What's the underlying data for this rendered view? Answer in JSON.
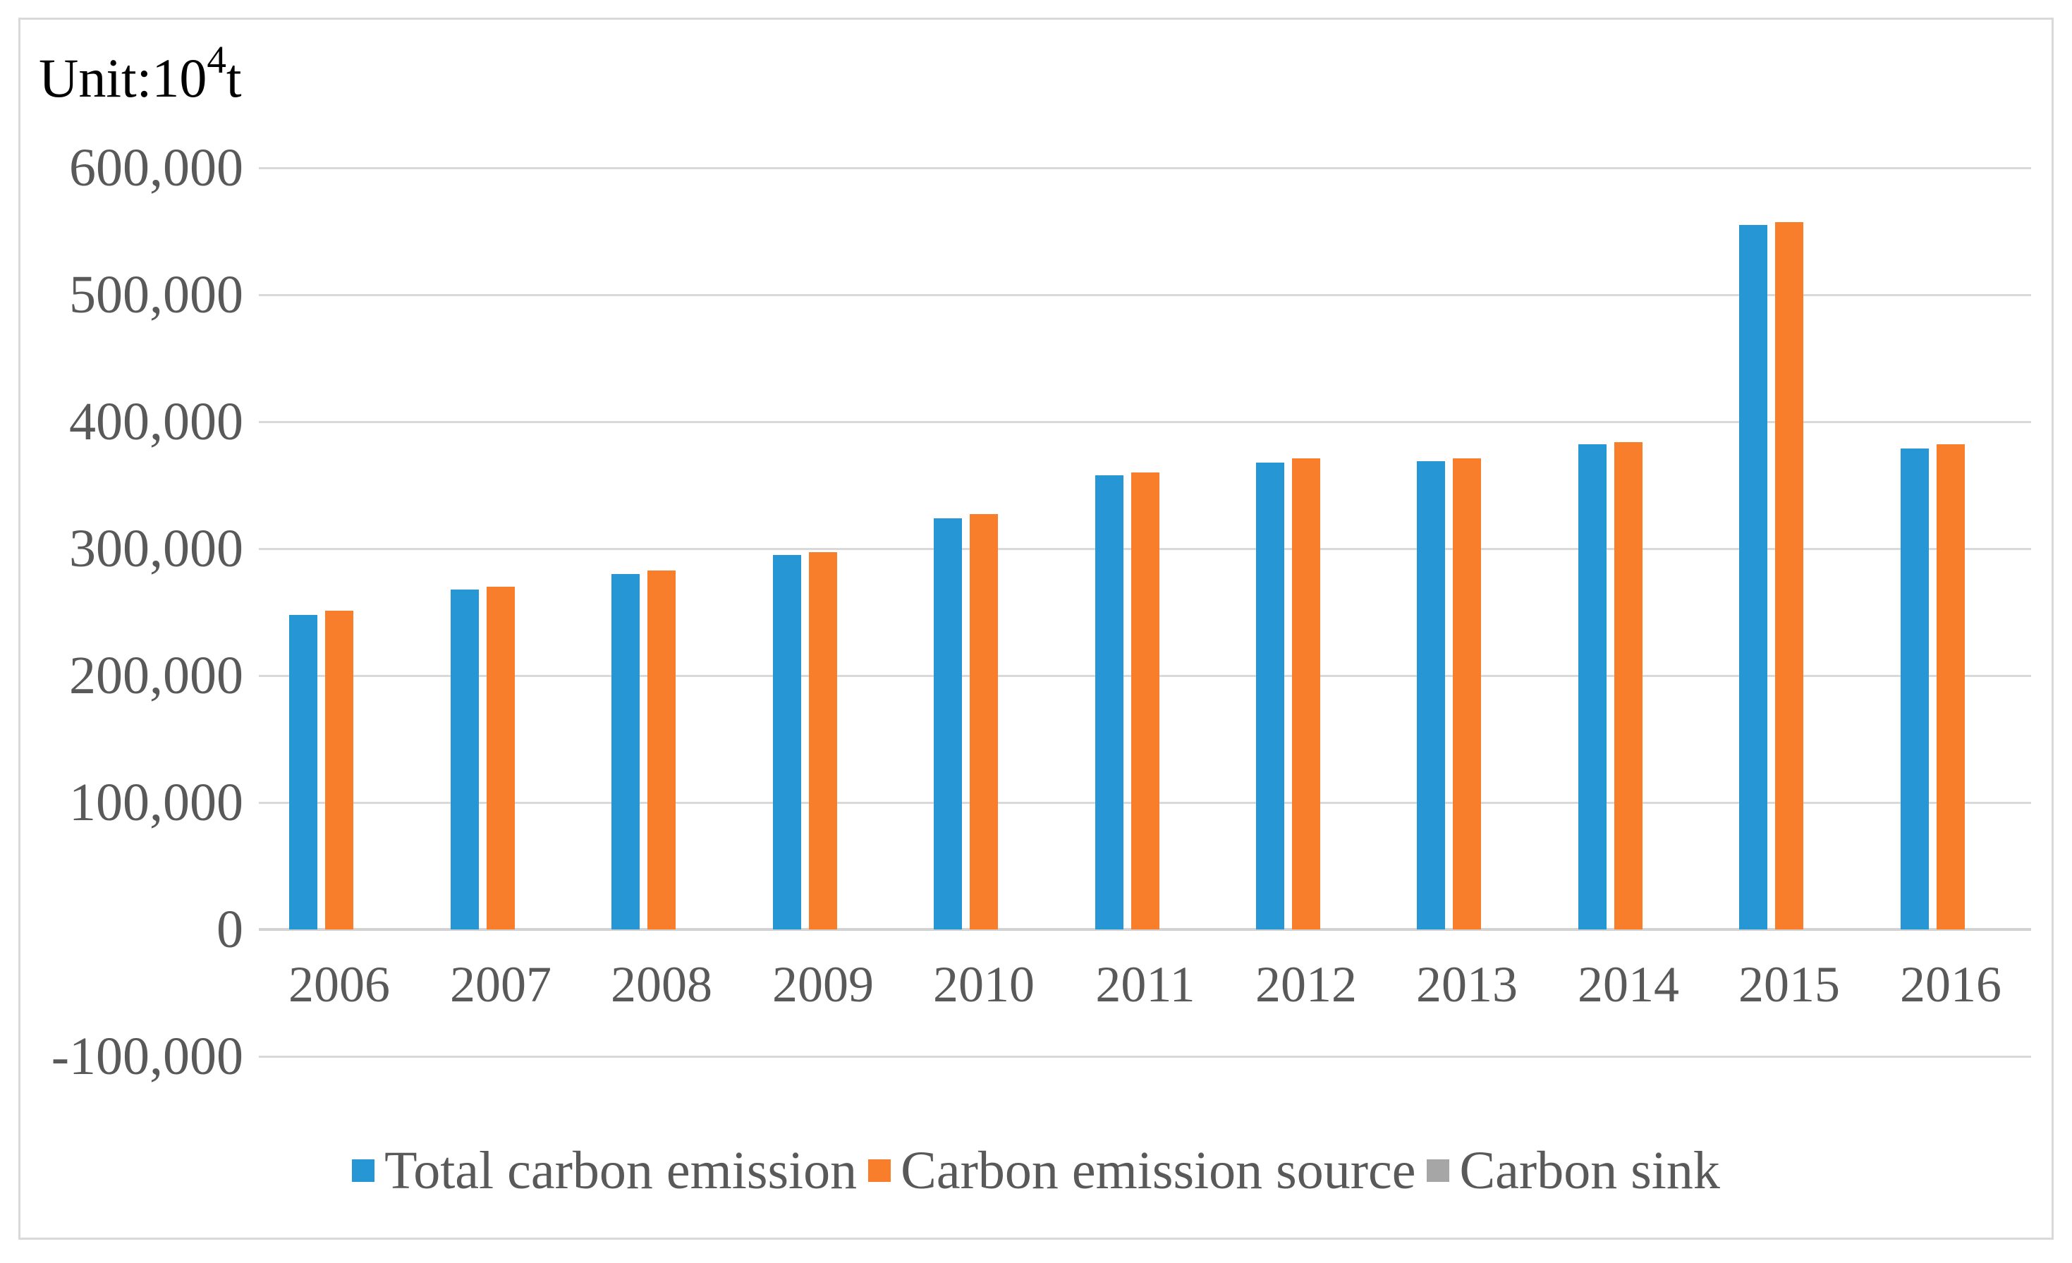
{
  "unit_label": {
    "prefix": "Unit:10",
    "exponent": "4",
    "suffix": "t"
  },
  "colors": {
    "total_carbon_emission": "#2697d4",
    "carbon_emission_source": "#f87e2c",
    "carbon_sink": "#a6a6a6",
    "gridline": "#d9d9d9",
    "axis_text": "#595959",
    "frame_border": "#d9d9d9"
  },
  "chart_data": {
    "type": "bar",
    "title": "",
    "xlabel": "",
    "ylabel": "Unit:10^4 t",
    "categories": [
      "2006",
      "2007",
      "2008",
      "2009",
      "2010",
      "2011",
      "2012",
      "2013",
      "2014",
      "2015",
      "2016"
    ],
    "series": [
      {
        "name": "Total carbon emission",
        "color": "#2697d4",
        "values": [
          248000,
          268000,
          280000,
          295000,
          324000,
          358000,
          368000,
          369000,
          382000,
          555000,
          379000
        ]
      },
      {
        "name": "Carbon emission source",
        "color": "#f87e2c",
        "values": [
          251000,
          270000,
          283000,
          297000,
          327000,
          360000,
          371000,
          371000,
          384000,
          557000,
          382000
        ]
      },
      {
        "name": "Carbon sink",
        "color": "#a6a6a6",
        "values": [
          0,
          0,
          0,
          0,
          0,
          0,
          0,
          0,
          0,
          0,
          0
        ],
        "bars_visible": false
      }
    ],
    "ylim": [
      -100000,
      600000
    ],
    "ytick_step": 100000,
    "yticks": [
      {
        "value": 600000,
        "label": "600,000"
      },
      {
        "value": 500000,
        "label": "500,000"
      },
      {
        "value": 400000,
        "label": "400,000"
      },
      {
        "value": 300000,
        "label": "300,000"
      },
      {
        "value": 200000,
        "label": "200,000"
      },
      {
        "value": 100000,
        "label": "100,000"
      },
      {
        "value": 0,
        "label": "0"
      },
      {
        "value": -100000,
        "label": "-100,000"
      }
    ],
    "grid": true,
    "legend_position": "bottom"
  }
}
